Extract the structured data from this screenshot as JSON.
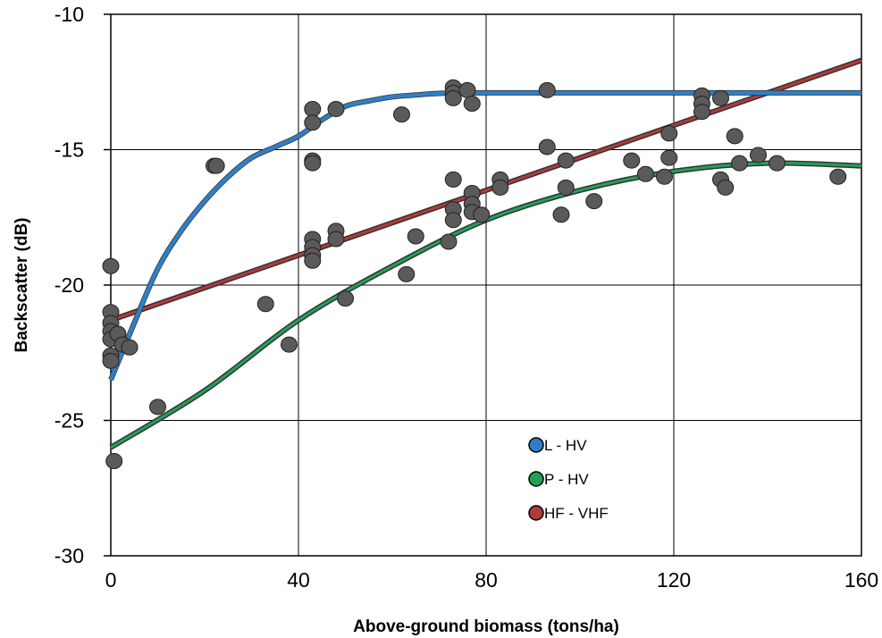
{
  "chart_data": {
    "type": "scatter",
    "title": "",
    "xlabel": "Above-ground biomass (tons/ha)",
    "ylabel": "Backscatter (dB)",
    "xlim": [
      0,
      160
    ],
    "ylim": [
      -30,
      -10
    ],
    "xticks": [
      0,
      40,
      80,
      120,
      160
    ],
    "yticks": [
      -30,
      -25,
      -20,
      -15,
      -10
    ],
    "grid": true,
    "legend_position": "bottom-center",
    "point_color": "#5a5a5a",
    "points": [
      [
        0,
        -19.3
      ],
      [
        0,
        -21.0
      ],
      [
        0,
        -21.4
      ],
      [
        0,
        -21.7
      ],
      [
        0,
        -22.0
      ],
      [
        0,
        -22.6
      ],
      [
        0,
        -22.8
      ],
      [
        0.7,
        -26.5
      ],
      [
        1.5,
        -21.8
      ],
      [
        2.5,
        -22.2
      ],
      [
        4,
        -22.3
      ],
      [
        10,
        -24.5
      ],
      [
        22,
        -15.6
      ],
      [
        22.5,
        -15.6
      ],
      [
        33,
        -20.7
      ],
      [
        38,
        -22.2
      ],
      [
        43,
        -13.5
      ],
      [
        43,
        -14.0
      ],
      [
        43,
        -15.4
      ],
      [
        43,
        -15.5
      ],
      [
        43,
        -18.3
      ],
      [
        43,
        -18.6
      ],
      [
        43,
        -18.9
      ],
      [
        43,
        -19.1
      ],
      [
        48,
        -13.5
      ],
      [
        48,
        -18.0
      ],
      [
        48,
        -18.3
      ],
      [
        50,
        -20.5
      ],
      [
        62,
        -13.7
      ],
      [
        63,
        -19.6
      ],
      [
        65,
        -18.2
      ],
      [
        72,
        -18.4
      ],
      [
        73,
        -12.7
      ],
      [
        73,
        -12.9
      ],
      [
        73,
        -13.1
      ],
      [
        73,
        -16.1
      ],
      [
        73,
        -17.2
      ],
      [
        73,
        -17.6
      ],
      [
        76,
        -12.8
      ],
      [
        77,
        -13.3
      ],
      [
        77,
        -16.6
      ],
      [
        77,
        -17.0
      ],
      [
        77,
        -17.3
      ],
      [
        79,
        -17.4
      ],
      [
        83,
        -16.1
      ],
      [
        83,
        -16.4
      ],
      [
        93,
        -12.8
      ],
      [
        93,
        -14.9
      ],
      [
        96,
        -17.4
      ],
      [
        97,
        -15.4
      ],
      [
        97,
        -16.4
      ],
      [
        103,
        -16.9
      ],
      [
        111,
        -15.4
      ],
      [
        114,
        -15.9
      ],
      [
        118,
        -16.0
      ],
      [
        119,
        -14.4
      ],
      [
        119,
        -15.3
      ],
      [
        126,
        -13.0
      ],
      [
        126,
        -13.3
      ],
      [
        126,
        -13.6
      ],
      [
        130,
        -13.1
      ],
      [
        130,
        -16.1
      ],
      [
        131,
        -16.4
      ],
      [
        133,
        -14.5
      ],
      [
        134,
        -15.5
      ],
      [
        138,
        -15.2
      ],
      [
        142,
        -15.5
      ],
      [
        155,
        -16.0
      ]
    ],
    "series": [
      {
        "name": "L - HV",
        "color": "#2f7fc4",
        "x": [
          0,
          5,
          10,
          15,
          20,
          25,
          30,
          35,
          40,
          45,
          50,
          55,
          60,
          65,
          70,
          80,
          100,
          120,
          140,
          160
        ],
        "values": [
          -23.5,
          -21.4,
          -19.4,
          -18.0,
          -16.9,
          -16.0,
          -15.3,
          -14.9,
          -14.5,
          -13.9,
          -13.4,
          -13.2,
          -13.05,
          -12.98,
          -12.92,
          -12.9,
          -12.9,
          -12.9,
          -12.9,
          -12.9
        ]
      },
      {
        "name": "P - HV",
        "color": "#22a05a",
        "x": [
          0,
          20,
          40,
          60,
          80,
          100,
          120,
          140,
          160
        ],
        "values": [
          -26.0,
          -23.9,
          -21.3,
          -19.3,
          -17.6,
          -16.5,
          -15.8,
          -15.5,
          -15.6
        ]
      },
      {
        "name": "HF - VHF",
        "color": "#b03a3a",
        "x": [
          0,
          160
        ],
        "values": [
          -21.3,
          -11.7
        ]
      }
    ]
  }
}
